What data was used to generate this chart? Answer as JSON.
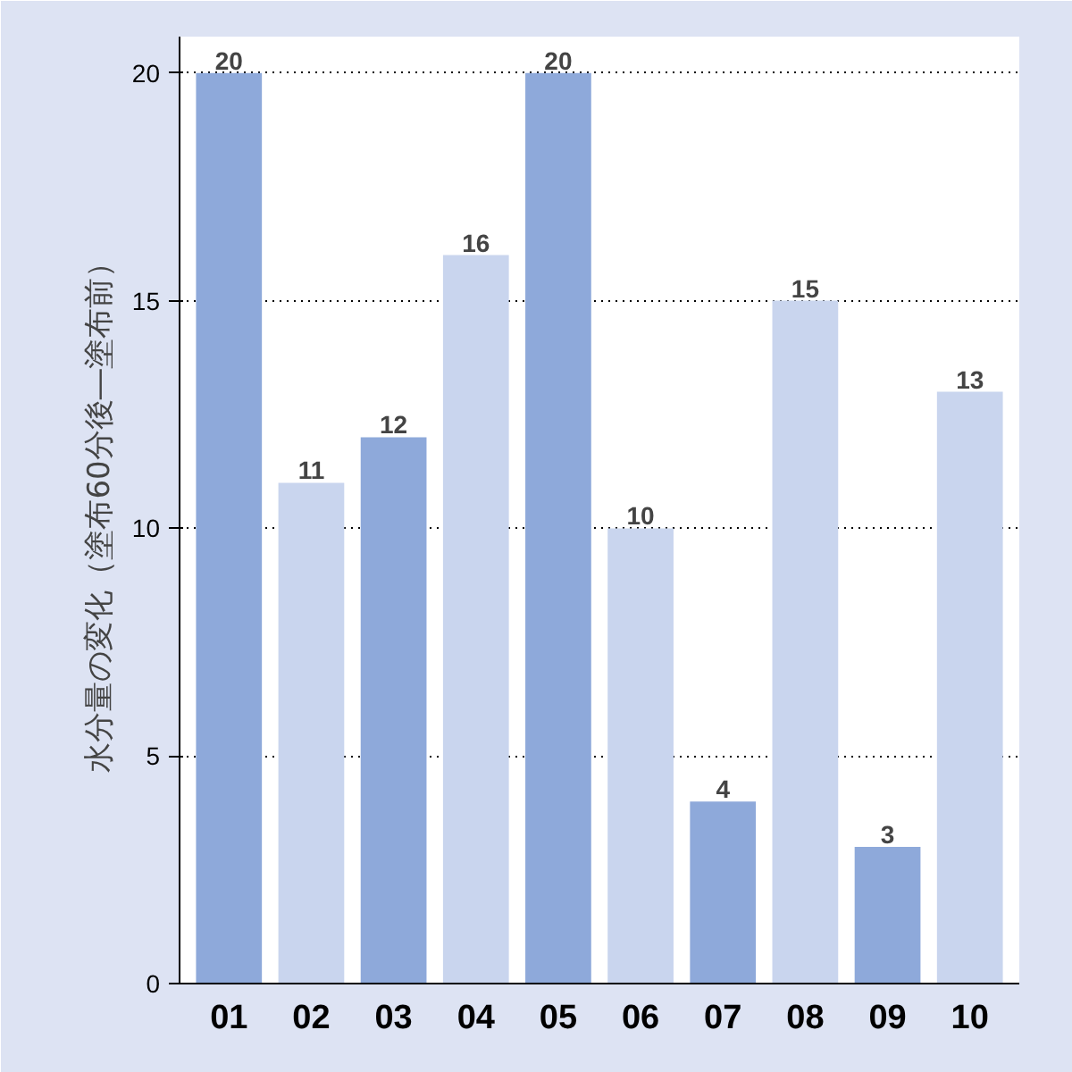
{
  "chart_data": {
    "type": "bar",
    "ylabel": "水分量の変化（塗布60分後―塗布前）",
    "categories": [
      "01",
      "02",
      "03",
      "04",
      "05",
      "06",
      "07",
      "08",
      "09",
      "10"
    ],
    "values": [
      20,
      11,
      12,
      16,
      20,
      10,
      4,
      15,
      3,
      13
    ],
    "colors": [
      "#8ea9da",
      "#c9d5ee",
      "#8ea9da",
      "#c9d5ee",
      "#8ea9da",
      "#c9d5ee",
      "#8ea9da",
      "#c9d5ee",
      "#8ea9da",
      "#c9d5ee"
    ],
    "ylim": [
      0,
      20
    ],
    "yticks": [
      0,
      5,
      10,
      15,
      20
    ],
    "grid": "y",
    "data_labels": true
  }
}
